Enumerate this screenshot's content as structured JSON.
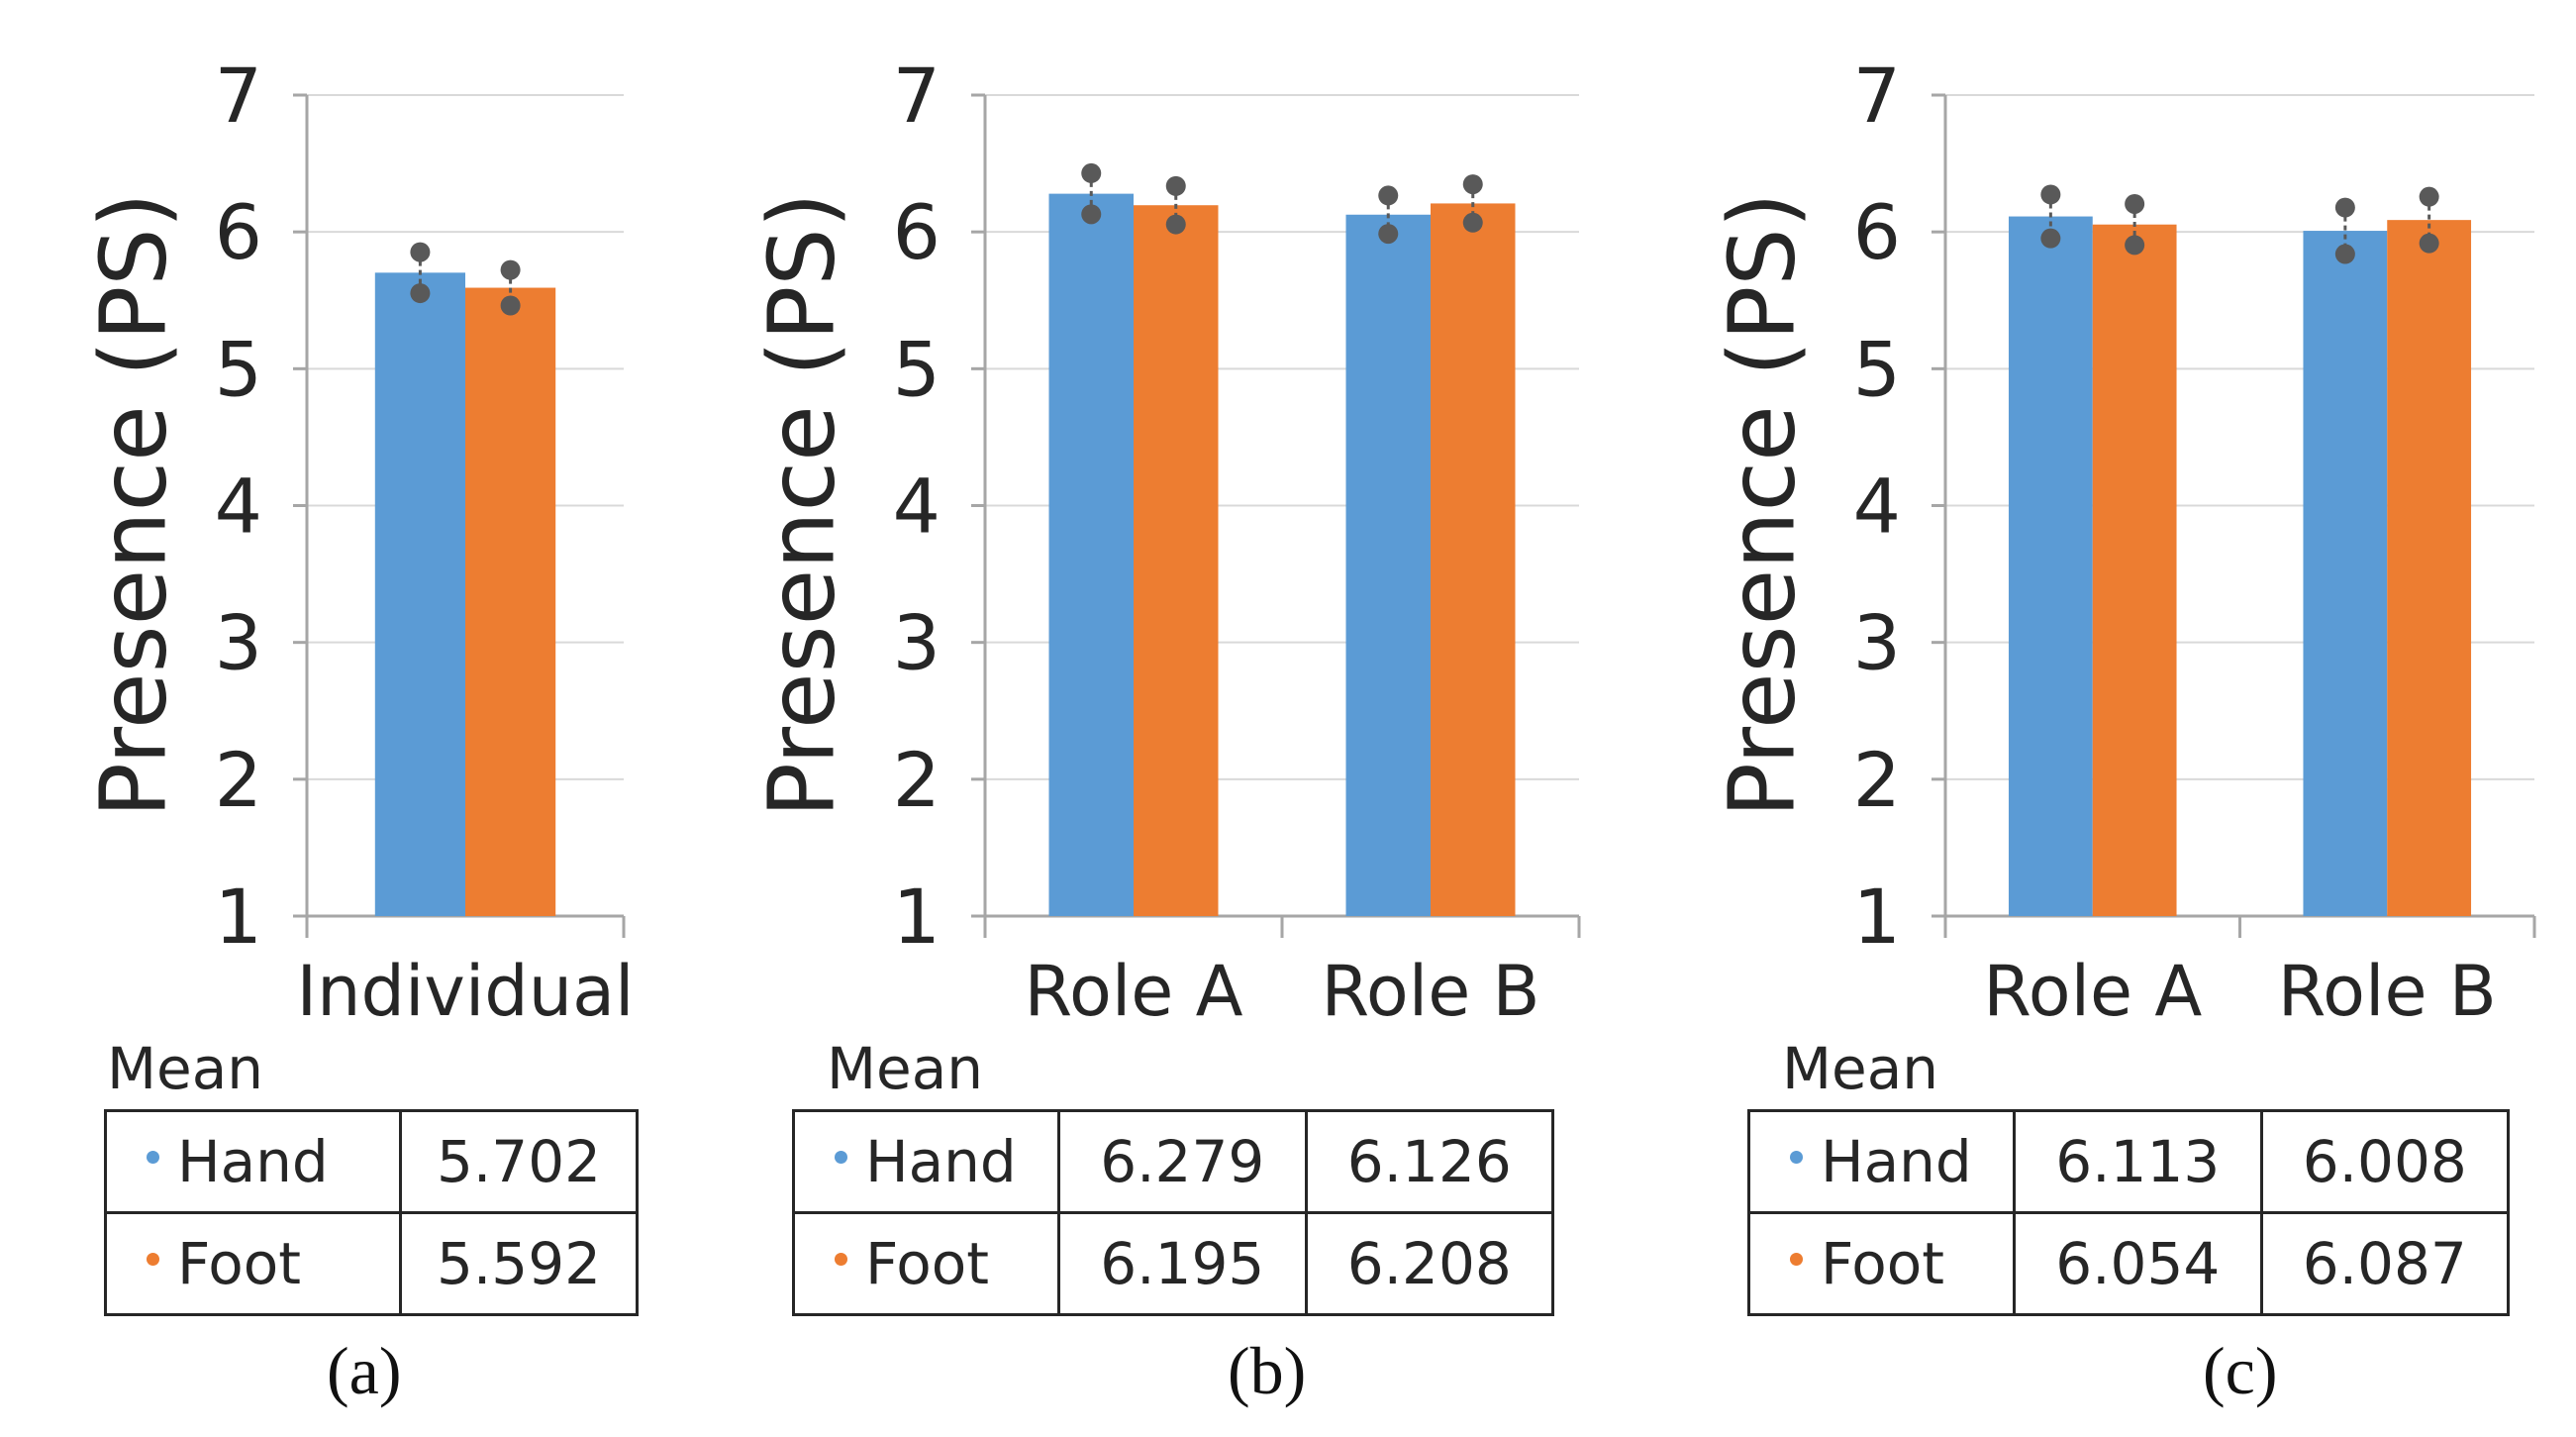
{
  "colors": {
    "hand": "#5b9bd5",
    "foot": "#ed7d31",
    "errorbar": "#595959",
    "grid": "#d9d9d9",
    "axis": "#a6a6a6"
  },
  "panels": [
    {
      "caption": "(a)",
      "table_title": "Mean",
      "table": {
        "rows": [
          {
            "series": "Hand",
            "values": [
              "5.702"
            ]
          },
          {
            "series": "Foot",
            "values": [
              "5.592"
            ]
          }
        ]
      }
    },
    {
      "caption": "(b)",
      "table_title": "Mean",
      "table": {
        "rows": [
          {
            "series": "Hand",
            "values": [
              "6.279",
              "6.126"
            ]
          },
          {
            "series": "Foot",
            "values": [
              "6.195",
              "6.208"
            ]
          }
        ]
      }
    },
    {
      "caption": "(c)",
      "table_title": "Mean",
      "table": {
        "rows": [
          {
            "series": "Hand",
            "values": [
              "6.113",
              "6.008"
            ]
          },
          {
            "series": "Foot",
            "values": [
              "6.054",
              "6.087"
            ]
          }
        ]
      }
    }
  ],
  "chart_data": [
    {
      "type": "bar",
      "title": "",
      "xlabel": "",
      "ylabel": "Presence (PS)",
      "ylim": [
        1,
        7
      ],
      "yticks": [
        1,
        2,
        3,
        4,
        5,
        6,
        7
      ],
      "grid": true,
      "categories": [
        "Individual"
      ],
      "series": [
        {
          "name": "Hand",
          "values": [
            5.702
          ],
          "error": [
            0.15
          ]
        },
        {
          "name": "Foot",
          "values": [
            5.592
          ],
          "error": [
            0.13
          ]
        }
      ]
    },
    {
      "type": "bar",
      "title": "",
      "xlabel": "",
      "ylabel": "Presence (PS)",
      "ylim": [
        1,
        7
      ],
      "yticks": [
        1,
        2,
        3,
        4,
        5,
        6,
        7
      ],
      "grid": true,
      "categories": [
        "Role A",
        "Role B"
      ],
      "series": [
        {
          "name": "Hand",
          "values": [
            6.279,
            6.126
          ],
          "error": [
            0.15,
            0.14
          ]
        },
        {
          "name": "Foot",
          "values": [
            6.195,
            6.208
          ],
          "error": [
            0.14,
            0.14
          ]
        }
      ]
    },
    {
      "type": "bar",
      "title": "",
      "xlabel": "",
      "ylabel": "Presence (PS)",
      "ylim": [
        1,
        7
      ],
      "yticks": [
        1,
        2,
        3,
        4,
        5,
        6,
        7
      ],
      "grid": true,
      "categories": [
        "Role A",
        "Role B"
      ],
      "series": [
        {
          "name": "Hand",
          "values": [
            6.113,
            6.008
          ],
          "error": [
            0.16,
            0.17
          ]
        },
        {
          "name": "Foot",
          "values": [
            6.054,
            6.087
          ],
          "error": [
            0.15,
            0.17
          ]
        }
      ]
    }
  ]
}
